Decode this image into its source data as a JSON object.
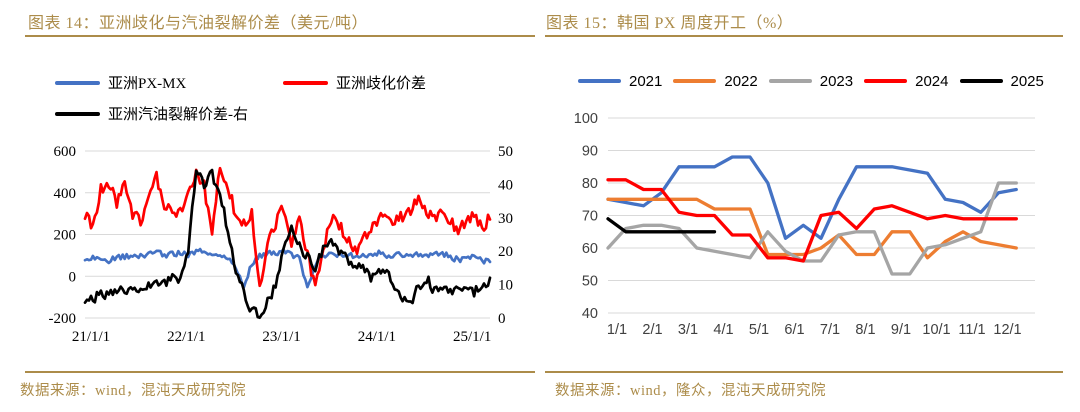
{
  "page": {
    "background": "#ffffff",
    "accent_color": "#AC8C4A"
  },
  "figure14": {
    "title": "图表 14：亚洲歧化与汽油裂解价差（美元/吨）",
    "source": "数据来源：wind，混沌天成研究院",
    "chart_data": {
      "type": "line",
      "title": "亚洲歧化与汽油裂解价差（美元/吨）",
      "x_axis": {
        "sampling": "monthly from 2021-01 to 2025-04",
        "tick_labels": [
          "21/1/1",
          "22/1/1",
          "23/1/1",
          "24/1/1",
          "25/1/1"
        ],
        "tick_month_index": [
          0,
          12,
          24,
          36,
          48
        ]
      },
      "left_axis": {
        "min": -200,
        "max": 600,
        "ticks": [
          600,
          400,
          200,
          0,
          -200
        ]
      },
      "right_axis": {
        "min": 0,
        "max": 50,
        "ticks": [
          50,
          40,
          30,
          20,
          10,
          0
        ]
      },
      "grid": true,
      "legend_position": "top-left",
      "series": [
        {
          "name": "亚洲PX-MX",
          "axis": "left",
          "color": "#4472C4",
          "volatility": 13,
          "values": [
            90,
            85,
            80,
            75,
            90,
            95,
            100,
            95,
            110,
            115,
            100,
            105,
            110,
            105,
            115,
            120,
            100,
            110,
            90,
            40,
            -50,
            60,
            100,
            110,
            110,
            120,
            100,
            90,
            -60,
            60,
            100,
            110,
            105,
            100,
            95,
            100,
            105,
            110,
            100,
            105,
            100,
            95,
            105,
            100,
            105,
            110,
            90,
            80,
            85,
            95,
            75,
            70
          ]
        },
        {
          "name": "亚洲歧化价差",
          "axis": "left",
          "color": "#FF0000",
          "volatility": 28,
          "values": [
            300,
            230,
            420,
            450,
            350,
            430,
            300,
            260,
            400,
            480,
            340,
            300,
            300,
            390,
            500,
            430,
            200,
            530,
            420,
            300,
            260,
            300,
            -50,
            150,
            250,
            330,
            150,
            300,
            100,
            -40,
            120,
            280,
            250,
            180,
            120,
            180,
            220,
            280,
            300,
            260,
            290,
            320,
            360,
            300,
            280,
            330,
            260,
            220,
            260,
            300,
            230,
            280
          ]
        },
        {
          "name": "亚洲汽油裂解价差-右",
          "axis": "right",
          "color": "#000000",
          "volatility": 1.6,
          "values": [
            6,
            6,
            7,
            7,
            8,
            9,
            8,
            9,
            10,
            11,
            10,
            12,
            12,
            20,
            45,
            40,
            43,
            38,
            25,
            15,
            8,
            2,
            1,
            5,
            10,
            20,
            28,
            22,
            18,
            15,
            20,
            22,
            20,
            18,
            15,
            16,
            12,
            15,
            13,
            10,
            6,
            5,
            9,
            12,
            8,
            10,
            8,
            9,
            10,
            8,
            9,
            12
          ]
        }
      ]
    }
  },
  "figure15": {
    "title": "图表 15：韩国 PX 周度开工（%）",
    "source": "数据来源：wind，隆众，混沌天成研究院",
    "chart_data": {
      "type": "line",
      "title": "韩国PX周度开工（%）",
      "x_axis": {
        "sampling": "semi-monthly within one year",
        "tick_labels": [
          "1/1",
          "2/1",
          "3/1",
          "4/1",
          "5/1",
          "6/1",
          "7/1",
          "8/1",
          "9/1",
          "10/1",
          "11/1",
          "12/1"
        ],
        "tick_positions": [
          1,
          2,
          3,
          4,
          5,
          6,
          7,
          8,
          9,
          10,
          11,
          12
        ],
        "points_x": [
          1,
          1.5,
          2,
          2.5,
          3,
          3.5,
          4,
          4.5,
          5,
          5.5,
          6,
          6.5,
          7,
          7.5,
          8,
          8.5,
          9,
          9.5,
          10,
          10.5,
          11,
          11.5,
          12,
          12.5
        ]
      },
      "y_axis": {
        "min": 40,
        "max": 100,
        "ticks": [
          100,
          90,
          80,
          70,
          60,
          50,
          40
        ]
      },
      "grid": true,
      "legend_position": "top",
      "series": [
        {
          "name": "2021",
          "color": "#4472C4",
          "values": [
            75,
            74,
            73,
            77,
            85,
            85,
            85,
            88,
            88,
            80,
            63,
            67,
            63,
            75,
            85,
            85,
            85,
            84,
            83,
            75,
            74,
            71,
            77,
            78
          ]
        },
        {
          "name": "2022",
          "color": "#ED7D31",
          "values": [
            75,
            75,
            75,
            75,
            75,
            75,
            72,
            72,
            72,
            58,
            58,
            58,
            60,
            64,
            58,
            58,
            65,
            65,
            57,
            62,
            65,
            62,
            61,
            60
          ]
        },
        {
          "name": "2023",
          "color": "#A5A5A5",
          "values": [
            60,
            66,
            67,
            67,
            66,
            60,
            59,
            58,
            57,
            65,
            59,
            56,
            56,
            64,
            65,
            65,
            52,
            52,
            60,
            61,
            63,
            65,
            80,
            80
          ]
        },
        {
          "name": "2024",
          "color": "#FF0000",
          "values": [
            81,
            81,
            78,
            78,
            71,
            70,
            70,
            64,
            64,
            57,
            57,
            56,
            70,
            71,
            66,
            72,
            73,
            71,
            69,
            70,
            69,
            69,
            69,
            69
          ]
        },
        {
          "name": "2025",
          "color": "#000000",
          "values": [
            69,
            65,
            65,
            65,
            65,
            65,
            65
          ]
        }
      ]
    }
  }
}
